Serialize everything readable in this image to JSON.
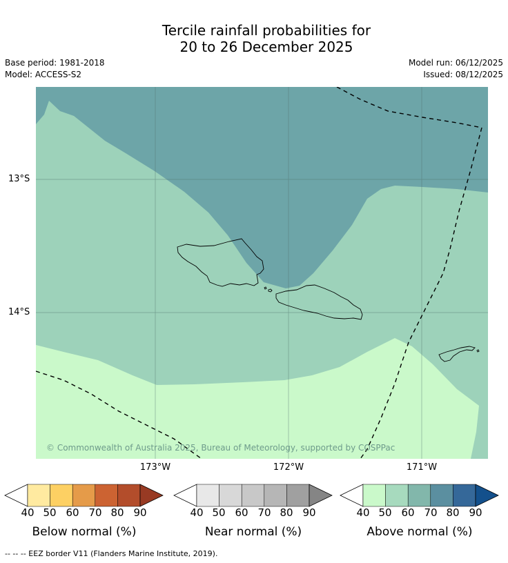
{
  "title": {
    "line1": "Tercile rainfall probabilities for",
    "line2": "20 to 26 December 2025"
  },
  "meta": {
    "base_period": "Base period: 1981-2018",
    "model": "Model: ACCESS-S2",
    "model_run": "Model run: 06/12/2025",
    "issued": "Issued: 08/12/2025"
  },
  "map": {
    "lat_labels": [
      "13°S",
      "14°S"
    ],
    "lon_labels": [
      "173°W",
      "172°W",
      "171°W"
    ],
    "copyright": "© Commonwealth of Australia 2025, Bureau of Meteorology, supported by COSPPac",
    "colors": {
      "above_50": "#caf9ca",
      "above_60": "#9dd2ba",
      "above_70": "#6da5a8"
    }
  },
  "colorbars": [
    {
      "name": "below",
      "title": "Below normal (%)",
      "ticks": [
        "40",
        "50",
        "60",
        "70",
        "80",
        "90"
      ],
      "colors": [
        "#ffffff",
        "#ffeaa0",
        "#fdd063",
        "#e59b49",
        "#cc6332",
        "#b34d2b",
        "#983a23"
      ]
    },
    {
      "name": "near",
      "title": "Near normal (%)",
      "ticks": [
        "40",
        "50",
        "60",
        "70",
        "80",
        "90"
      ],
      "colors": [
        "#ffffff",
        "#e8e8e8",
        "#d8d8d8",
        "#c8c8c8",
        "#b6b6b6",
        "#a0a0a0",
        "#858585"
      ]
    },
    {
      "name": "above",
      "title": "Above normal (%)",
      "ticks": [
        "40",
        "50",
        "60",
        "70",
        "80",
        "90"
      ],
      "colors": [
        "#ffffff",
        "#caf9ca",
        "#a7dabe",
        "#82b7ab",
        "#5b8fa0",
        "#356899",
        "#13508c"
      ]
    }
  ],
  "eez_legend": "--  --  -- EEZ border V11 (Flanders Marine Institute, 2019)."
}
